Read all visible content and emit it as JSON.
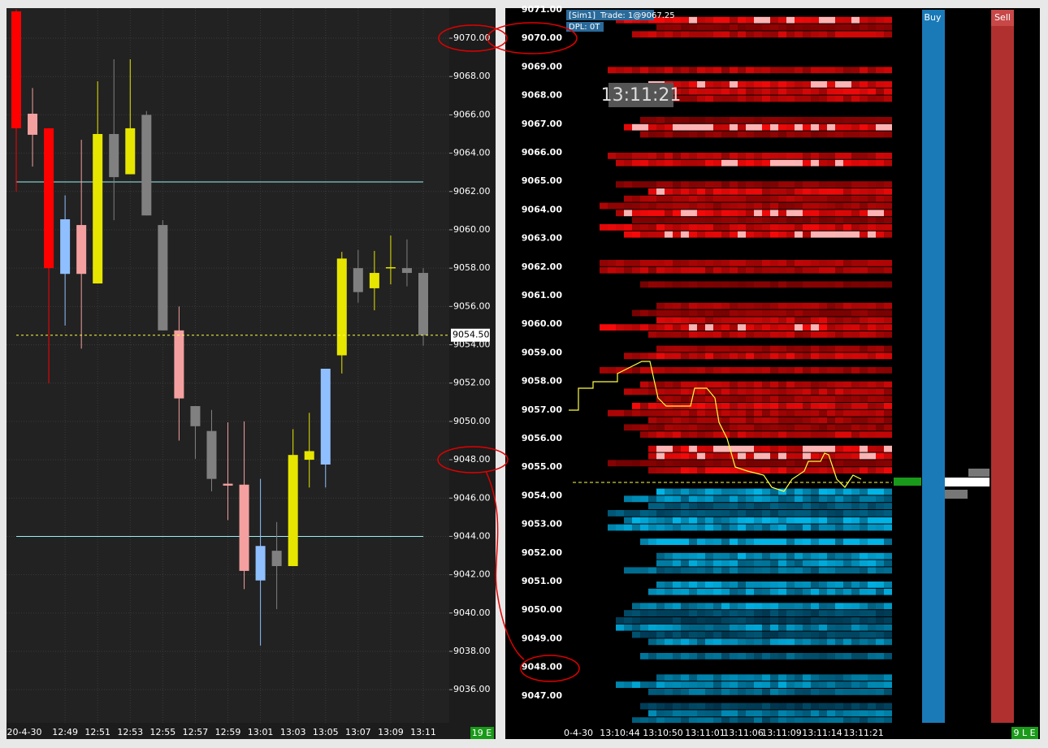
{
  "chart_data": {
    "type": "candlestick",
    "categories": [
      "20-4-30",
      null,
      null,
      "12:49",
      null,
      "12:51",
      null,
      "12:53",
      null,
      "12:55",
      null,
      "12:57",
      null,
      "12:59",
      null,
      "13:01",
      null,
      "13:03",
      null,
      "13:05",
      null,
      "13:07",
      null,
      "13:09",
      null,
      "13:11"
    ],
    "open": [
      9071.4,
      9066.06,
      9065.3,
      9057.7,
      9060.25,
      9057.2,
      9065.0,
      9062.9,
      9066.0,
      9060.25,
      9054.75,
      9050.8,
      9049.5,
      9046.75,
      9046.7,
      9041.7,
      9043.25,
      9042.45,
      9048.0,
      9047.75,
      9053.45,
      9058.0,
      9056.95,
      9058.0,
      9058.0,
      9057.75
    ],
    "high": [
      9071.5,
      9067.4,
      9065.3,
      9061.8,
      9064.7,
      9067.75,
      9068.9,
      9068.9,
      9066.2,
      9060.5,
      9056.0,
      9050.8,
      9050.6,
      9049.95,
      9050.0,
      9047.0,
      9044.75,
      9049.6,
      9050.45,
      9052.75,
      9058.85,
      9058.95,
      9058.9,
      9059.7,
      9059.5,
      9058.0
    ],
    "low": [
      9062.0,
      9063.3,
      9052.0,
      9055.0,
      9053.8,
      9057.2,
      9060.5,
      9062.9,
      9060.75,
      9054.75,
      9049.0,
      9048.05,
      9046.35,
      9044.85,
      9041.25,
      9038.3,
      9040.2,
      9042.45,
      9046.55,
      9046.55,
      9052.5,
      9056.2,
      9055.8,
      9057.15,
      9057.05,
      9053.95
    ],
    "close": [
      9065.3,
      9064.96,
      9058.0,
      9060.55,
      9057.7,
      9065.0,
      9062.75,
      9065.3,
      9060.75,
      9054.75,
      9051.2,
      9049.75,
      9047.0,
      9046.65,
      9042.2,
      9043.5,
      9042.45,
      9048.25,
      9048.45,
      9052.75,
      9058.5,
      9056.75,
      9057.75,
      9058.05,
      9057.75,
      9054.5
    ],
    "colors": [
      "#ff0000",
      "#f4a0a0",
      "#ff0000",
      "#8fbfff",
      "#f4a0a0",
      "#e6e600",
      "#808080",
      "#e6e600",
      "#808080",
      "#808080",
      "#f4a0a0",
      "#808080",
      "#808080",
      "#f4a0a0",
      "#f4a0a0",
      "#8fbfff",
      "#808080",
      "#e6e600",
      "#e6e600",
      "#8fbfff",
      "#e6e600",
      "#808080",
      "#e6e600",
      "#e6e600",
      "#808080",
      "#808080"
    ],
    "ylim": [
      9034.27,
      9071.57
    ],
    "yticks": [
      {
        "value": 9036,
        "label": "9036.00"
      },
      {
        "value": 9038,
        "label": "9038.00"
      },
      {
        "value": 9040,
        "label": "9040.00"
      },
      {
        "value": 9042,
        "label": "9042.00"
      },
      {
        "value": 9044,
        "label": "9044.00"
      },
      {
        "value": 9046,
        "label": "9046.00"
      },
      {
        "value": 9048,
        "label": "9048.00"
      },
      {
        "value": 9050,
        "label": "9050.00"
      },
      {
        "value": 9052,
        "label": "9052.00"
      },
      {
        "value": 9054,
        "label": "9054.00"
      },
      {
        "value": 9056,
        "label": "9056.00"
      },
      {
        "value": 9058,
        "label": "9058.00"
      },
      {
        "value": 9060,
        "label": "9060.00"
      },
      {
        "value": 9062,
        "label": "9062.00"
      },
      {
        "value": 9064,
        "label": "9064.00"
      },
      {
        "value": 9066,
        "label": "9066.00"
      },
      {
        "value": 9068,
        "label": "9068.00"
      },
      {
        "value": 9070,
        "label": "9070.00"
      }
    ],
    "grid": true,
    "hlines": [
      9062.5,
      9044.0
    ],
    "hline_color": "#9eeeee",
    "last_price": {
      "value": 9054.5,
      "label": "9054.50"
    },
    "badge": "19 E"
  },
  "dom_panel": {
    "price_ticks": [
      "9071.00",
      "9070.00",
      "9069.00",
      "9068.00",
      "9067.00",
      "9066.00",
      "9065.00",
      "9064.00",
      "9063.00",
      "9062.00",
      "9061.00",
      "9060.00",
      "9059.00",
      "9058.00",
      "9057.00",
      "9056.00",
      "9055.00",
      "9054.00",
      "9053.00",
      "9052.00",
      "9051.00",
      "9050.00",
      "9049.00",
      "9048.00",
      "9047.00"
    ],
    "time_ticks": [
      "0-4-30",
      "13:10:44",
      "13:10:50",
      "13:11:01",
      "13:11:06",
      "13:11:09",
      "13:11:14",
      "13:11:21"
    ],
    "account": "[Sim1]",
    "trade": "Trade: 1@9067.25",
    "dpl": "DPL: 0T",
    "clock": "13:11:21",
    "buy_header": "Buy",
    "sell_header": "Sell",
    "badge": "9 L E"
  }
}
